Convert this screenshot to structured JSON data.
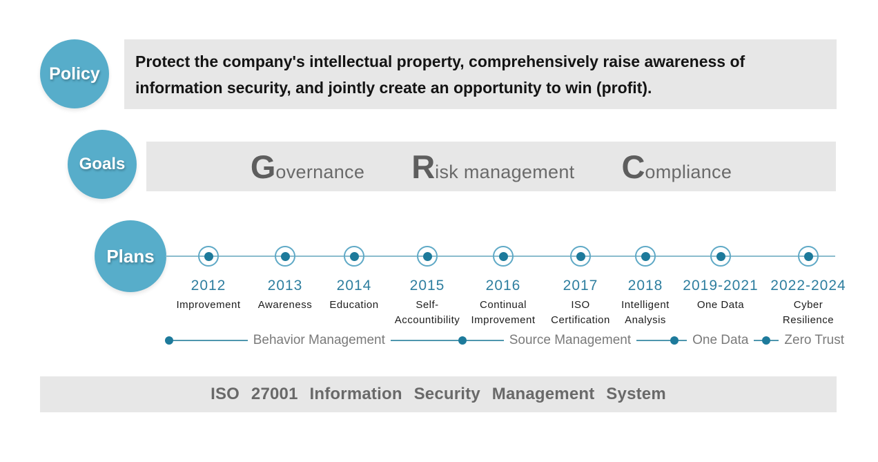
{
  "policy": {
    "badge": "Policy",
    "text": "Protect the company's intellectual property, comprehensively raise awareness of information security, and jointly create an opportunity to win (profit)."
  },
  "goals": {
    "badge": "Goals",
    "items": [
      {
        "initial": "G",
        "rest": "overnance"
      },
      {
        "initial": "R",
        "rest": "isk management"
      },
      {
        "initial": "C",
        "rest": "ompliance"
      }
    ]
  },
  "plans": {
    "badge": "Plans",
    "milestones": [
      {
        "year": "2012",
        "line1": "Improvement",
        "line2": ""
      },
      {
        "year": "2013",
        "line1": "Awareness",
        "line2": ""
      },
      {
        "year": "2014",
        "line1": "Education",
        "line2": ""
      },
      {
        "year": "2015",
        "line1": "Self-",
        "line2": "Accountibility"
      },
      {
        "year": "2016",
        "line1": "Continual",
        "line2": "Improvement"
      },
      {
        "year": "2017",
        "line1": "ISO",
        "line2": "Certification"
      },
      {
        "year": "2018",
        "line1": "Intelligent",
        "line2": "Analysis"
      },
      {
        "year": "2019-2021",
        "line1": "One Data",
        "line2": ""
      },
      {
        "year": "2022-2024",
        "line1": "Cyber",
        "line2": "Resilience"
      }
    ],
    "phases": [
      {
        "label": "Behavior Management"
      },
      {
        "label": "Source Management"
      },
      {
        "label": "One Data"
      },
      {
        "label": "Zero Trust"
      }
    ]
  },
  "footer": {
    "text": "ISO 27001 Information Security Management System"
  },
  "colors": {
    "circle_teal": "#57ADCA",
    "bar_gray": "#E7E7E7",
    "dot_teal": "#1D7A9B",
    "ring_teal": "#5FA9C6",
    "timeline_line": "#8ABCCD",
    "phase_line": "#4E96AE",
    "year_teal": "#2E7E9F",
    "grc_gray": "#6A6A6A",
    "footer_gray": "#696969"
  }
}
